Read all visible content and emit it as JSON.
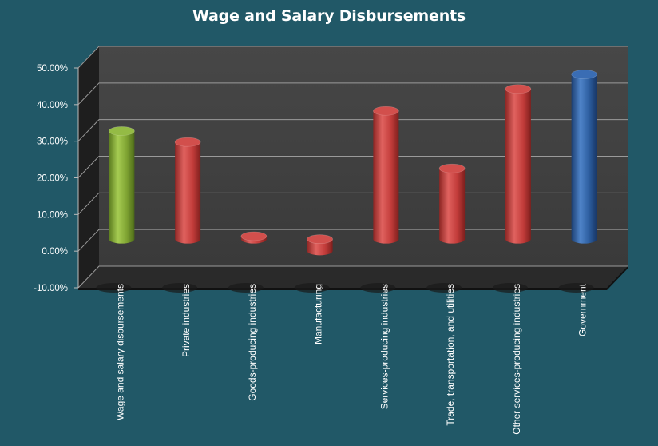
{
  "chart_data": {
    "type": "bar",
    "title": "Wage and Salary Disbursements",
    "xlabel": "",
    "ylabel": "",
    "ylim": [
      -10,
      50
    ],
    "yticks": [
      "50.00%",
      "40.00%",
      "30.00%",
      "20.00%",
      "10.00%",
      "0.00%",
      "-10.00%"
    ],
    "grid": true,
    "legend": "none",
    "categories": [
      "Wage and salary disbursements",
      "Private industries",
      "Goods-producing industries",
      "Manufacturing",
      "Services-producing industries",
      "Trade, transportation, and utilities",
      "Other services-producing industries",
      "Government"
    ],
    "values": [
      29.5,
      26.5,
      0.8,
      -3.2,
      35.0,
      19.3,
      41.0,
      45.0
    ],
    "bar_colors": [
      "#8db33b",
      "#c9413f",
      "#c9413f",
      "#c9413f",
      "#c9413f",
      "#c9413f",
      "#c9413f",
      "#2e5fa3"
    ]
  },
  "colors": {
    "background": "#215867",
    "plot_back_wall": "#3f3f3f",
    "plot_side_wall": "#1e1e1e",
    "gridline": "#9a9a9a"
  }
}
